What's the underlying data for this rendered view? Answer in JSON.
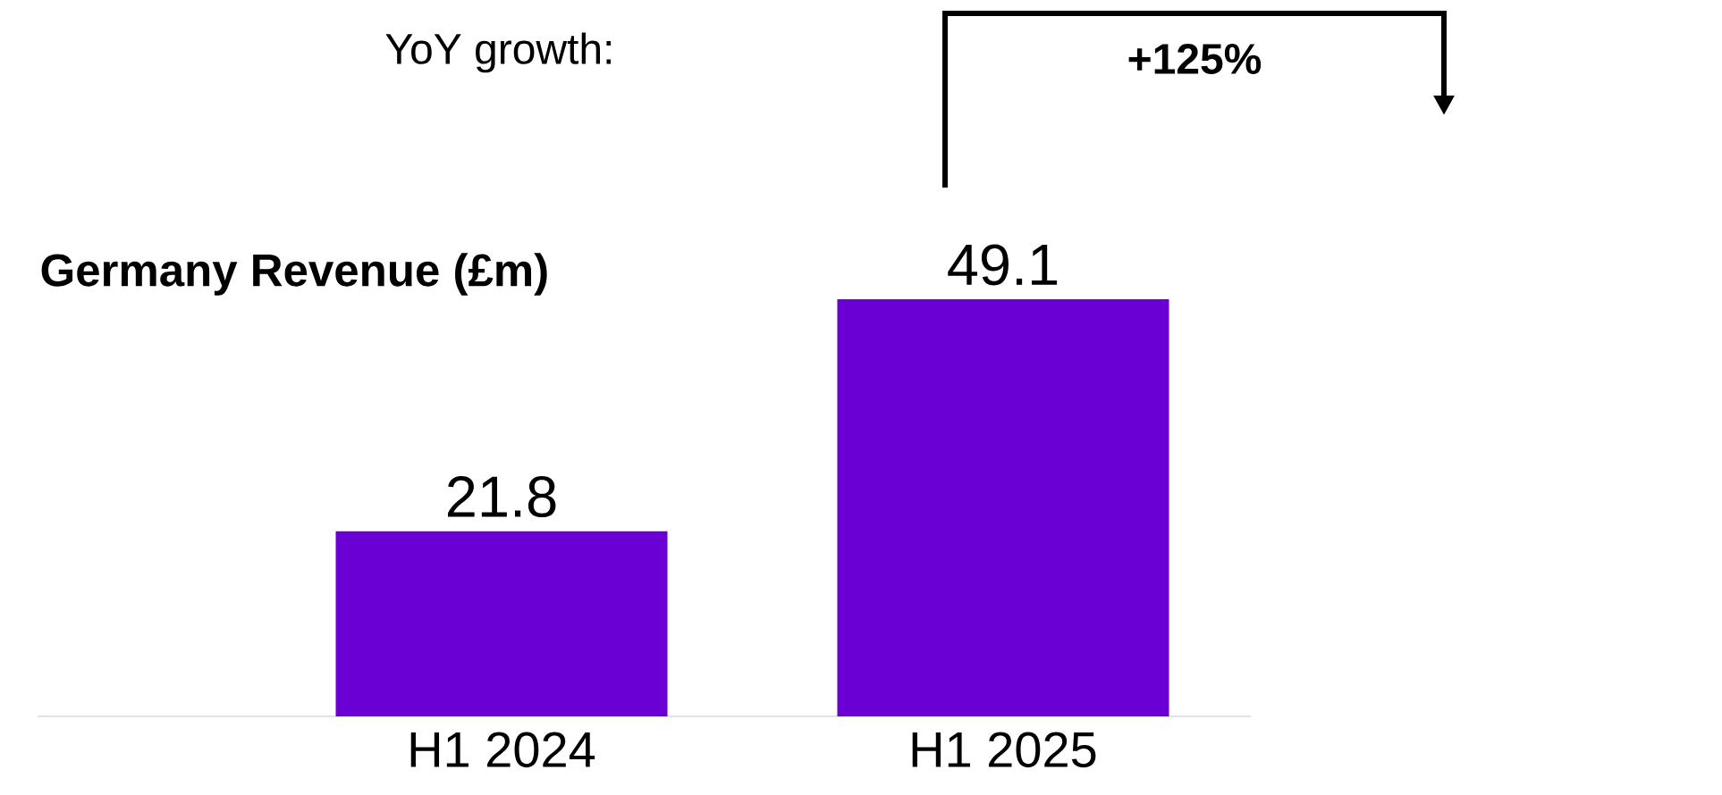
{
  "chart_data": {
    "type": "bar",
    "ylabel": "Germany Revenue (£m)",
    "categories": [
      "H1 2024",
      "H1 2025"
    ],
    "values": [
      21.8,
      49.1
    ],
    "color": "#6a00d3",
    "data_labels": true,
    "annotations": [
      "YoY growth:",
      "+125%"
    ]
  }
}
